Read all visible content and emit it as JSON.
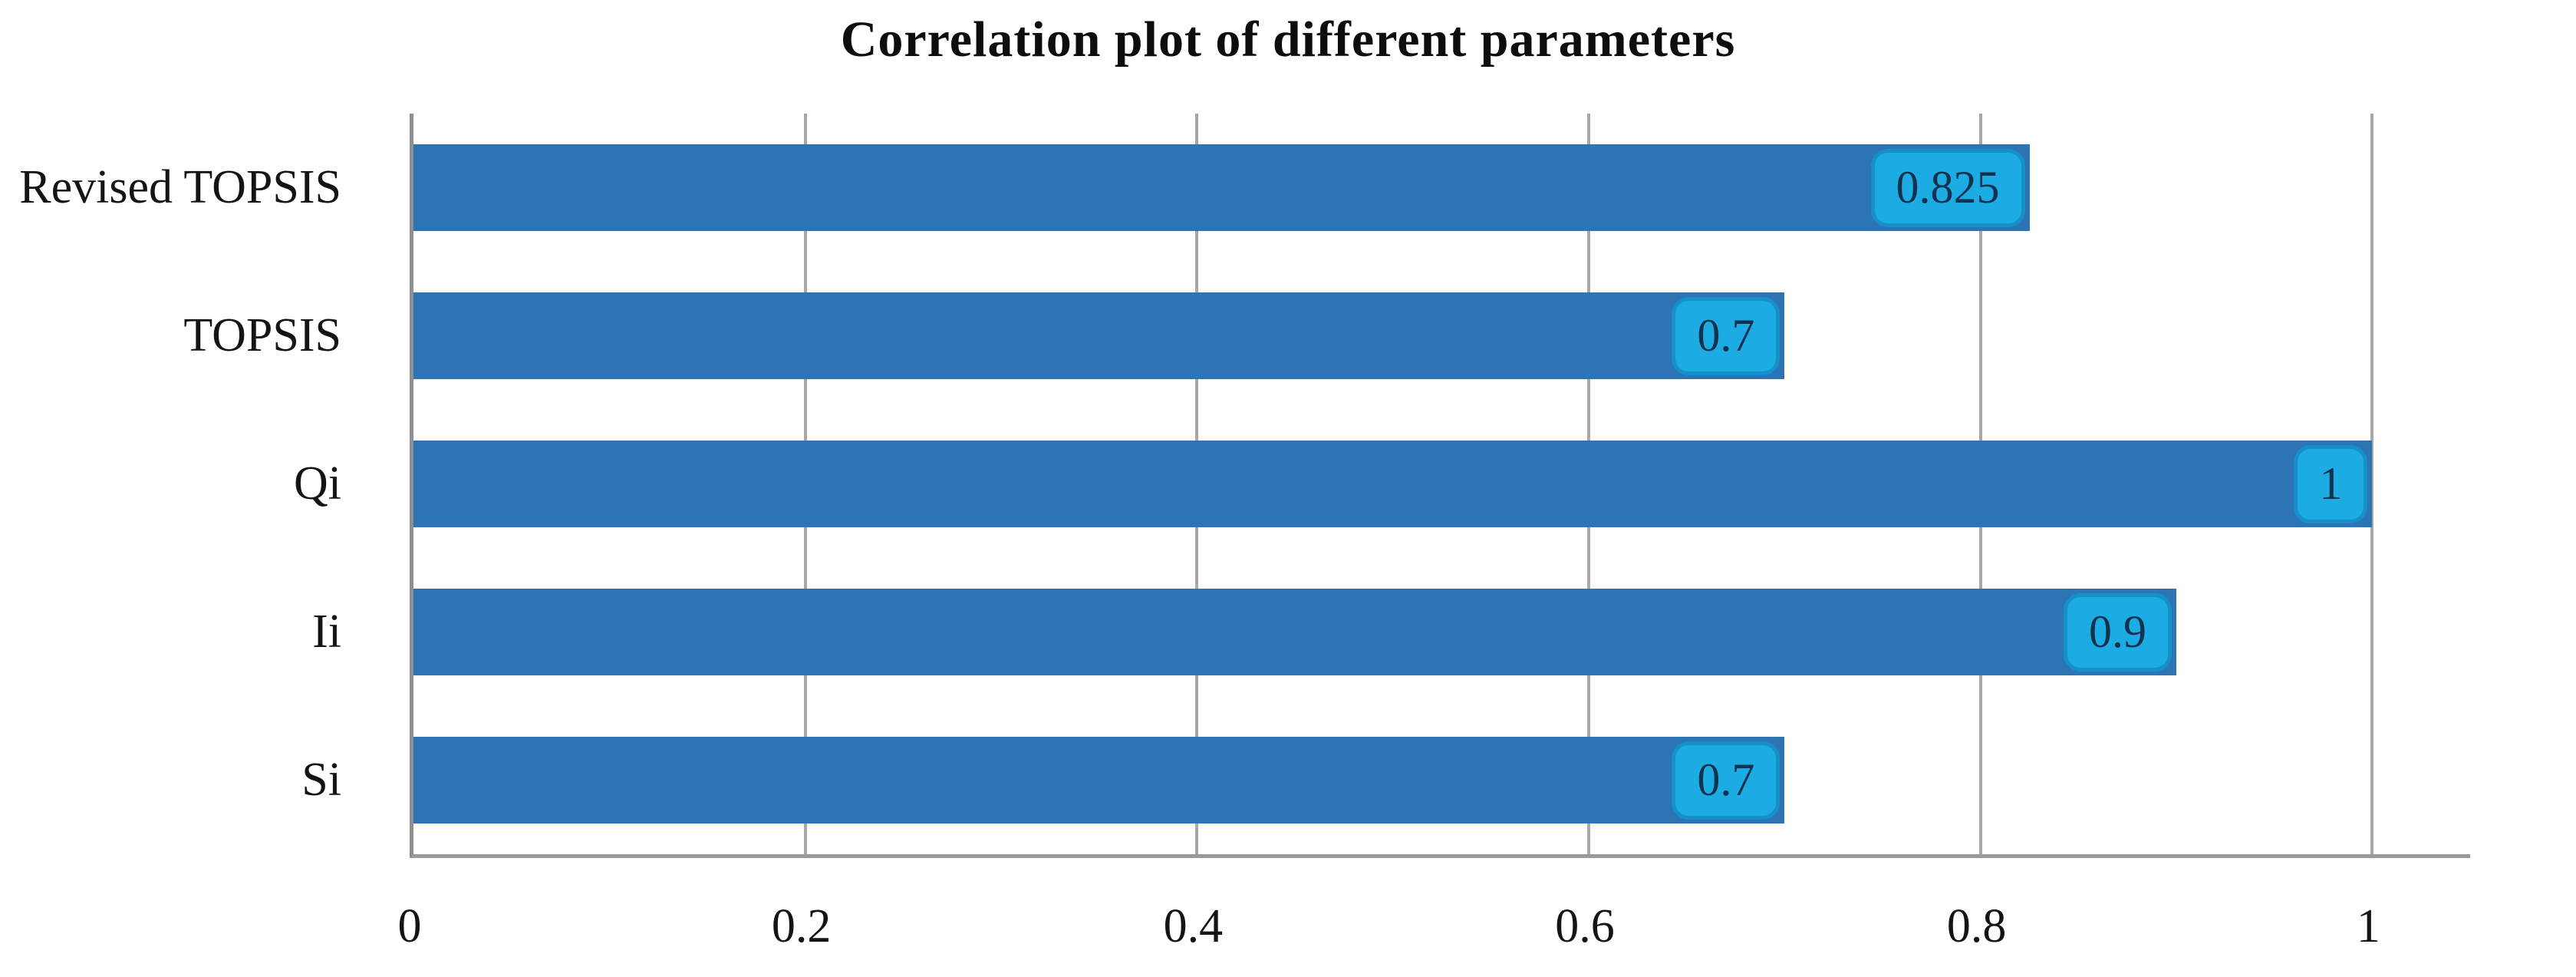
{
  "title": "Correlation plot of different parameters",
  "chart_data": {
    "type": "bar",
    "orientation": "horizontal",
    "title": "Correlation plot of different parameters",
    "xlabel": "",
    "ylabel": "",
    "categories": [
      "Revised TOPSIS",
      "TOPSIS",
      "Qi",
      "Ii",
      "Si"
    ],
    "values": [
      0.825,
      0.7,
      1,
      0.9,
      0.7
    ],
    "value_labels": [
      "0.825",
      "0.7",
      "1",
      "0.9",
      "0.7"
    ],
    "xlim": [
      0,
      1.05
    ],
    "xticks": [
      0,
      0.2,
      0.4,
      0.6,
      0.8,
      1
    ],
    "xtick_labels": [
      "0",
      "0.2",
      "0.4",
      "0.6",
      "0.8",
      "1"
    ],
    "grid": "vertical-gridlines-on",
    "legend": "none",
    "colors": {
      "bar": "#2d74b4",
      "value_box_fill": "#1cace3",
      "value_box_border": "#1590c8",
      "value_box_text": "#11324f",
      "gridline": "#a8a8a8",
      "axis_line": "#8f8f8f",
      "text": "#141414"
    }
  }
}
